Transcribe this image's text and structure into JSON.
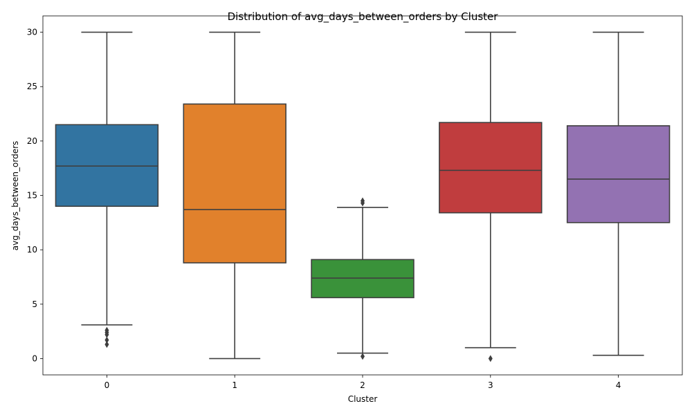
{
  "chart_data": {
    "type": "box",
    "title": "Distribution of avg_days_between_orders by Cluster",
    "xlabel": "Cluster",
    "ylabel": "avg_days_between_orders",
    "ylim": [
      -1.5,
      31.5
    ],
    "yticks": [
      0,
      5,
      10,
      15,
      20,
      25,
      30
    ],
    "grid": false,
    "categories": [
      "0",
      "1",
      "2",
      "3",
      "4"
    ],
    "boxes": [
      {
        "category": "0",
        "color": "#3274a1",
        "whisker_low": 3.1,
        "q1": 14.0,
        "median": 17.7,
        "q3": 21.5,
        "whisker_high": 30.0,
        "outliers": [
          2.6,
          2.4,
          2.2,
          1.7,
          1.3
        ]
      },
      {
        "category": "1",
        "color": "#e1812c",
        "whisker_low": 0.0,
        "q1": 8.8,
        "median": 13.7,
        "q3": 23.4,
        "whisker_high": 30.0,
        "outliers": []
      },
      {
        "category": "2",
        "color": "#3a923a",
        "whisker_low": 0.5,
        "q1": 5.6,
        "median": 7.4,
        "q3": 9.1,
        "whisker_high": 13.9,
        "outliers": [
          14.5,
          14.3,
          0.2
        ]
      },
      {
        "category": "3",
        "color": "#c03d3e",
        "whisker_low": 1.0,
        "q1": 13.4,
        "median": 17.3,
        "q3": 21.7,
        "whisker_high": 30.0,
        "outliers": [
          0.0
        ]
      },
      {
        "category": "4",
        "color": "#9372b2",
        "whisker_low": 0.3,
        "q1": 12.5,
        "median": 16.5,
        "q3": 21.4,
        "whisker_high": 30.0,
        "outliers": []
      }
    ]
  }
}
